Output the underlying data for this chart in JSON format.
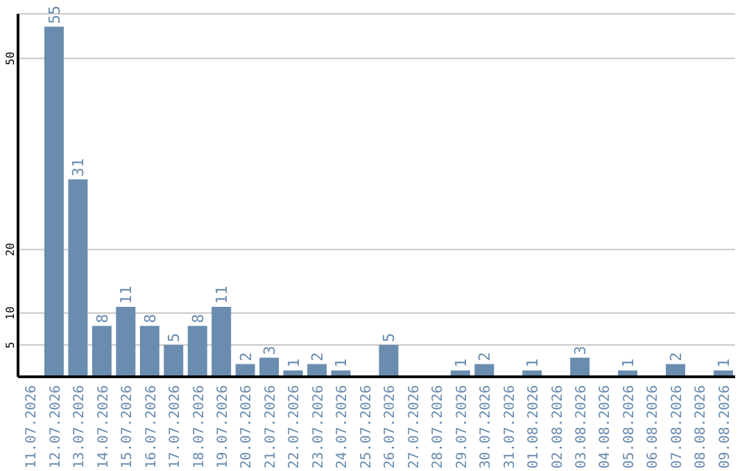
{
  "chart_data": {
    "type": "bar",
    "categories": [
      "11.07.2026",
      "12.07.2026",
      "13.07.2026",
      "14.07.2026",
      "15.07.2026",
      "16.07.2026",
      "17.07.2026",
      "18.07.2026",
      "19.07.2026",
      "20.07.2026",
      "21.07.2026",
      "22.07.2026",
      "23.07.2026",
      "24.07.2026",
      "25.07.2026",
      "26.07.2026",
      "27.07.2026",
      "28.07.2026",
      "29.07.2026",
      "30.07.2026",
      "31.07.2026",
      "01.08.2026",
      "02.08.2026",
      "03.08.2026",
      "04.08.2026",
      "05.08.2026",
      "06.08.2026",
      "07.08.2026",
      "08.08.2026",
      "09.08.2026"
    ],
    "values": [
      0,
      55,
      31,
      8,
      11,
      8,
      5,
      8,
      11,
      2,
      3,
      1,
      2,
      1,
      0,
      5,
      0,
      0,
      1,
      2,
      0,
      1,
      0,
      3,
      0,
      1,
      0,
      2,
      0,
      1
    ],
    "value_labels": [
      null,
      "55",
      "31",
      "8",
      "11",
      "8",
      "5",
      "8",
      "11",
      "2",
      "3",
      "1",
      "2",
      "1",
      null,
      "5",
      null,
      null,
      "1",
      "2",
      null,
      "1",
      null,
      "3",
      null,
      "1",
      null,
      "2",
      null,
      "1"
    ],
    "color": "#6a8caf",
    "ylim": [
      0,
      57
    ],
    "yticks": [
      5,
      10,
      20,
      50
    ],
    "grid": "y"
  }
}
